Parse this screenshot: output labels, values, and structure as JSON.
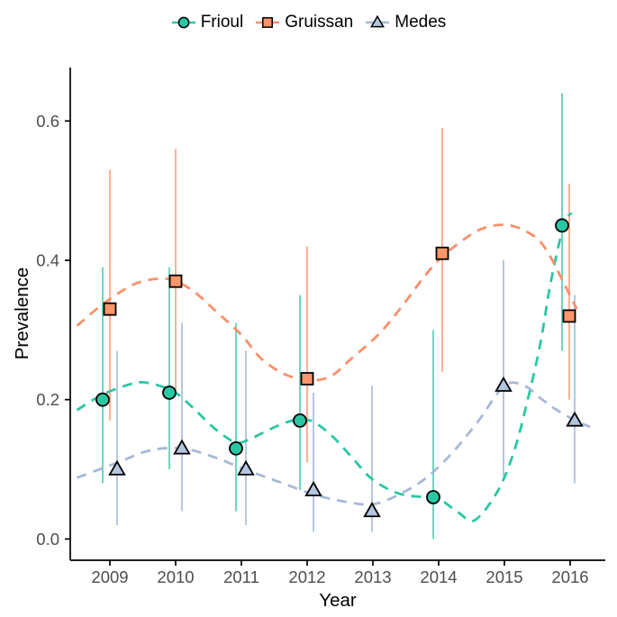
{
  "page": {
    "background": "#ffffff"
  },
  "chart_data": {
    "type": "scatter",
    "title": "",
    "xlabel": "Year",
    "ylabel": "Prevalence",
    "x_ticks": [
      2009,
      2010,
      2011,
      2012,
      2013,
      2014,
      2015,
      2016
    ],
    "y_ticks": [
      "0.0",
      "0.2",
      "0.4",
      "0.6"
    ],
    "y_tick_values": [
      0,
      0.2,
      0.4,
      0.6
    ],
    "xlim": [
      2008.4,
      2016.55
    ],
    "ylim": [
      -0.03,
      0.677
    ],
    "grid": false,
    "legend_position": "top",
    "error_bars": "vertical lines, no caps",
    "trend_style": "dashed loess smooth",
    "axis_color": "#000000",
    "tick_label_color": "#4d4d4d",
    "series": [
      {
        "name": "Frioul",
        "marker": "circle",
        "color": "#2ac7a4",
        "fill": "#2bc7a5",
        "bar_color": "#49cdad",
        "points": [
          {
            "year": 2009,
            "value": 0.2,
            "lower": 0.08,
            "upper": 0.39,
            "dx": -8
          },
          {
            "year": 2010,
            "value": 0.21,
            "lower": 0.1,
            "upper": 0.39,
            "dx": -7
          },
          {
            "year": 2011,
            "value": 0.13,
            "lower": 0.04,
            "upper": 0.31,
            "dx": -6
          },
          {
            "year": 2012,
            "value": 0.17,
            "lower": 0.07,
            "upper": 0.35,
            "dx": -8
          },
          {
            "year": 2014,
            "value": 0.06,
            "lower": 0.0,
            "upper": 0.3,
            "dx": -6
          },
          {
            "year": 2016,
            "value": 0.45,
            "lower": 0.27,
            "upper": 0.64,
            "dx": -9
          }
        ],
        "trend": [
          [
            2008.5,
            0.185
          ],
          [
            2008.75,
            0.2
          ],
          [
            2009,
            0.212
          ],
          [
            2009.3,
            0.222
          ],
          [
            2009.5,
            0.225
          ],
          [
            2009.75,
            0.22
          ],
          [
            2010,
            0.21
          ],
          [
            2010.3,
            0.185
          ],
          [
            2010.6,
            0.158
          ],
          [
            2010.9,
            0.139
          ],
          [
            2011.1,
            0.142
          ],
          [
            2011.4,
            0.156
          ],
          [
            2011.7,
            0.168
          ],
          [
            2011.9,
            0.171
          ],
          [
            2012.1,
            0.168
          ],
          [
            2012.4,
            0.146
          ],
          [
            2012.7,
            0.115
          ],
          [
            2013,
            0.085
          ],
          [
            2013.4,
            0.065
          ],
          [
            2013.8,
            0.06
          ],
          [
            2014,
            0.058
          ],
          [
            2014.3,
            0.038
          ],
          [
            2014.55,
            0.027
          ],
          [
            2014.9,
            0.069
          ],
          [
            2015.15,
            0.127
          ],
          [
            2015.35,
            0.198
          ],
          [
            2015.55,
            0.282
          ],
          [
            2015.7,
            0.366
          ],
          [
            2015.9,
            0.45
          ],
          [
            2016.02,
            0.468
          ]
        ]
      },
      {
        "name": "Gruissan",
        "marker": "square",
        "color": "#f99069",
        "fill": "#f9966c",
        "bar_color": "#fb9e78",
        "points": [
          {
            "year": 2009,
            "value": 0.33,
            "lower": 0.17,
            "upper": 0.53,
            "dx": 0
          },
          {
            "year": 2010,
            "value": 0.37,
            "lower": 0.21,
            "upper": 0.56,
            "dx": 0
          },
          {
            "year": 2012,
            "value": 0.23,
            "lower": 0.11,
            "upper": 0.42,
            "dx": 0
          },
          {
            "year": 2014,
            "value": 0.41,
            "lower": 0.24,
            "upper": 0.59,
            "dx": 4
          },
          {
            "year": 2016,
            "value": 0.32,
            "lower": 0.2,
            "upper": 0.51,
            "dx": -1
          }
        ],
        "trend": [
          [
            2008.5,
            0.306
          ],
          [
            2008.85,
            0.334
          ],
          [
            2009.2,
            0.357
          ],
          [
            2009.5,
            0.37
          ],
          [
            2009.9,
            0.373
          ],
          [
            2010.25,
            0.357
          ],
          [
            2010.6,
            0.328
          ],
          [
            2011,
            0.293
          ],
          [
            2011.3,
            0.259
          ],
          [
            2011.65,
            0.237
          ],
          [
            2012,
            0.228
          ],
          [
            2012.35,
            0.233
          ],
          [
            2012.65,
            0.257
          ],
          [
            2013.1,
            0.295
          ],
          [
            2013.5,
            0.341
          ],
          [
            2013.75,
            0.373
          ],
          [
            2014.05,
            0.405
          ],
          [
            2014.4,
            0.431
          ],
          [
            2014.65,
            0.445
          ],
          [
            2014.95,
            0.451
          ],
          [
            2015.2,
            0.447
          ],
          [
            2015.5,
            0.431
          ],
          [
            2015.7,
            0.405
          ],
          [
            2015.9,
            0.368
          ],
          [
            2016.1,
            0.33
          ]
        ]
      },
      {
        "name": "Medes",
        "marker": "triangle",
        "color": "#a6b9d6",
        "fill": "#b3c6df",
        "bar_color": "#a3b9d8",
        "points": [
          {
            "year": 2009,
            "value": 0.1,
            "lower": 0.02,
            "upper": 0.27,
            "dx": 8
          },
          {
            "year": 2010,
            "value": 0.13,
            "lower": 0.04,
            "upper": 0.31,
            "dx": 7
          },
          {
            "year": 2011,
            "value": 0.1,
            "lower": 0.02,
            "upper": 0.27,
            "dx": 5
          },
          {
            "year": 2012,
            "value": 0.07,
            "lower": 0.01,
            "upper": 0.21,
            "dx": 7
          },
          {
            "year": 2013,
            "value": 0.04,
            "lower": 0.01,
            "upper": 0.22,
            "dx": -1
          },
          {
            "year": 2015,
            "value": 0.22,
            "lower": 0.09,
            "upper": 0.4,
            "dx": -1
          },
          {
            "year": 2016,
            "value": 0.17,
            "lower": 0.08,
            "upper": 0.35,
            "dx": 5
          }
        ],
        "trend": [
          [
            2008.5,
            0.088
          ],
          [
            2009.1,
            0.109
          ],
          [
            2009.6,
            0.127
          ],
          [
            2010.1,
            0.13
          ],
          [
            2010.6,
            0.117
          ],
          [
            2011.05,
            0.1
          ],
          [
            2011.6,
            0.081
          ],
          [
            2012.1,
            0.064
          ],
          [
            2012.55,
            0.054
          ],
          [
            2013,
            0.05
          ],
          [
            2013.4,
            0.064
          ],
          [
            2013.8,
            0.087
          ],
          [
            2014.2,
            0.123
          ],
          [
            2014.6,
            0.169
          ],
          [
            2015,
            0.22
          ],
          [
            2015.3,
            0.22
          ],
          [
            2015.55,
            0.202
          ],
          [
            2015.8,
            0.185
          ],
          [
            2016.1,
            0.169
          ],
          [
            2016.3,
            0.161
          ]
        ]
      }
    ]
  }
}
